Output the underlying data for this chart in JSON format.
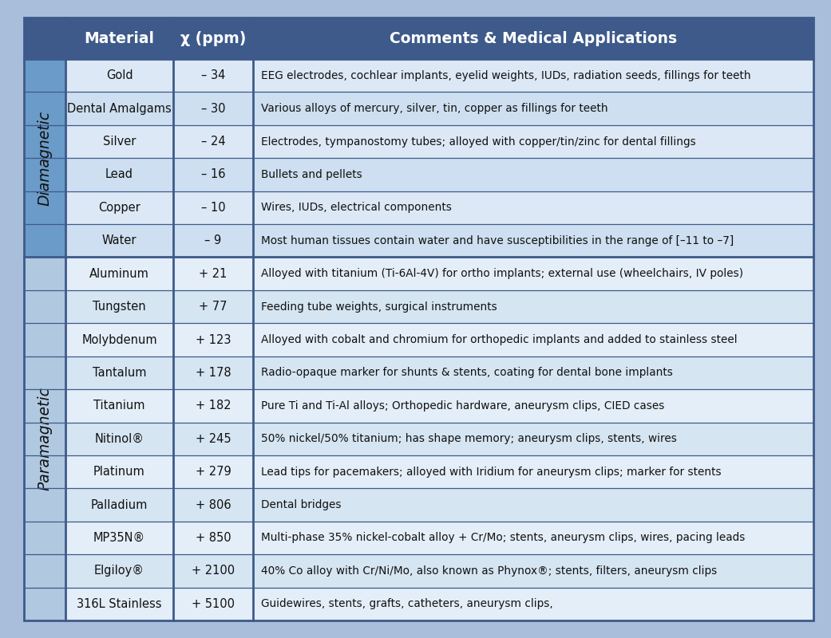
{
  "header": [
    "Material",
    "χ (ppm)",
    "Comments & Medical Applications"
  ],
  "rows": [
    [
      "Gold",
      "– 34",
      "EEG electrodes, cochlear implants, eyelid weights, IUDs, radiation seeds, fillings for teeth"
    ],
    [
      "Dental Amalgams",
      "– 30",
      "Various alloys of mercury, silver, tin, copper as fillings for teeth"
    ],
    [
      "Silver",
      "– 24",
      "Electrodes, tympanostomy tubes; alloyed with copper/tin/zinc for dental fillings"
    ],
    [
      "Lead",
      "– 16",
      "Bullets and pellets"
    ],
    [
      "Copper",
      "– 10",
      "Wires, IUDs, electrical components"
    ],
    [
      "Water",
      "– 9",
      "Most human tissues contain water and have susceptibilities in the range of [–11 to –7]"
    ],
    [
      "Aluminum",
      "+ 21",
      "Alloyed with titanium (Ti-6Al-4V) for ortho implants; external use (wheelchairs, IV poles)"
    ],
    [
      "Tungsten",
      "+ 77",
      "Feeding tube weights, surgical instruments"
    ],
    [
      "Molybdenum",
      "+ 123",
      "Alloyed with cobalt and chromium for orthopedic implants and added to stainless steel"
    ],
    [
      "Tantalum",
      "+ 178",
      "Radio-opaque marker for shunts & stents, coating for dental bone implants"
    ],
    [
      "Titanium",
      "+ 182",
      "Pure Ti and Ti-Al alloys; Orthopedic hardware, aneurysm clips, CIED cases"
    ],
    [
      "Nitinol®",
      "+ 245",
      "50% nickel/50% titanium; has shape memory; aneurysm clips, stents, wires"
    ],
    [
      "Platinum",
      "+ 279",
      "Lead tips for pacemakers; alloyed with Iridium for aneurysm clips; marker for stents"
    ],
    [
      "Palladium",
      "+ 806",
      "Dental bridges"
    ],
    [
      "MP35N®",
      "+ 850",
      "Multi-phase 35% nickel-cobalt alloy + Cr/Mo; stents, aneurysm clips, wires, pacing leads"
    ],
    [
      "Elgiloy®",
      "+ 2100",
      "40% Co alloy with Cr/Ni/Mo, also known as Phynox®; stents, filters, aneurysm clips"
    ],
    [
      "316L Stainless",
      "+ 5100",
      "Guidewires, stents, grafts, catheters, aneurysm clips,"
    ]
  ],
  "group_labels": [
    "Diamagnetic",
    "Paramagnetic"
  ],
  "group_spans": [
    6,
    11
  ],
  "fig_bg": "#a8bedb",
  "header_bg": "#3d5a8a",
  "header_text": "#ffffff",
  "dia_label_bg": "#6b9bc8",
  "para_label_bg": "#b0c8e0",
  "row_colors_dia": [
    "#dce8f5",
    "#cddff0"
  ],
  "row_colors_para": [
    "#e4eef8",
    "#d5e5f2"
  ],
  "border_color": "#3d5a8a",
  "text_color": "#111111",
  "header_fontsize": 13.5,
  "row_fontsize": 10.5,
  "comment_fontsize": 9.8,
  "group_label_fontsize": 13.5
}
